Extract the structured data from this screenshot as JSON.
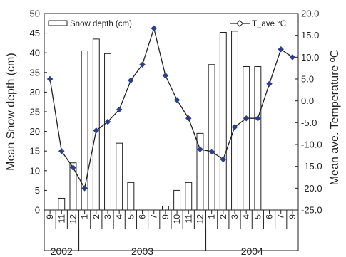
{
  "chart_data": {
    "type": "bar+line",
    "x_ticks": [
      "9",
      "11",
      "12",
      "1",
      "2",
      "3",
      "4",
      "5",
      "6",
      "7",
      "9",
      "10",
      "11",
      "12",
      "1",
      "2",
      "3",
      "4",
      "5",
      "6",
      "7",
      "9"
    ],
    "years": [
      {
        "label": "2002",
        "first_tick": 0,
        "last_tick": 2
      },
      {
        "label": "2003",
        "first_tick": 3,
        "last_tick": 13
      },
      {
        "label": "2004",
        "first_tick": 14,
        "last_tick": 21
      }
    ],
    "y_left": {
      "label": "Mean Snow depth (cm)",
      "min": 0,
      "max": 50,
      "step": 5
    },
    "y_right": {
      "label": "Mean ave. Temperature ºC",
      "min": -25,
      "max": 20,
      "step": 5
    },
    "series": [
      {
        "name": "Snow depth (cm)",
        "kind": "bar",
        "axis": "left",
        "values": [
          null,
          3,
          12,
          40.5,
          43.5,
          39.8,
          17,
          7,
          null,
          null,
          1,
          5,
          7,
          19.5,
          37,
          45.2,
          45.5,
          36.5,
          36.5,
          null,
          null,
          null
        ]
      },
      {
        "name": "T_ave °C",
        "kind": "line",
        "axis": "right",
        "values": [
          5,
          -11.5,
          -15.3,
          -20,
          -6.8,
          -4.8,
          -2,
          4.7,
          8.3,
          16.6,
          5.8,
          0.2,
          -4,
          -11.1,
          -11.6,
          -13.4,
          -6,
          -4,
          -4,
          3.9,
          11.8,
          10
        ]
      }
    ],
    "legend": {
      "position": "top"
    },
    "grid": false
  }
}
